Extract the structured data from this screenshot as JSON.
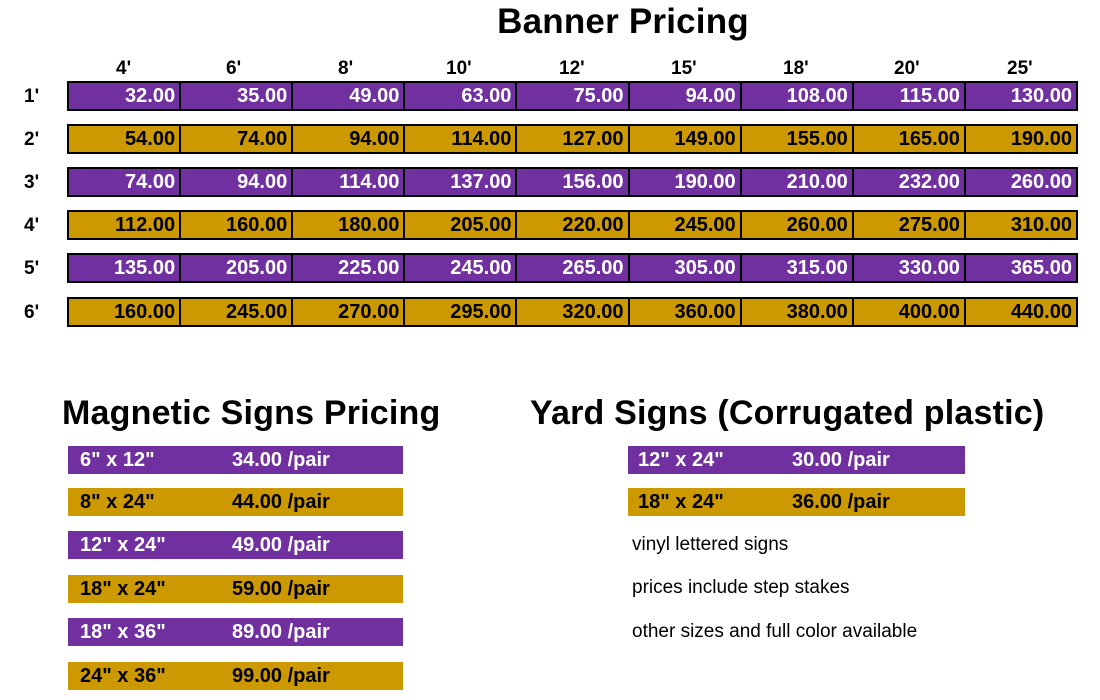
{
  "banner": {
    "title": "Banner Pricing",
    "columns": [
      "4'",
      "6'",
      "8'",
      "10'",
      "12'",
      "15'",
      "18'",
      "20'",
      "25'"
    ],
    "rows": [
      {
        "label": "1'",
        "color": "#7030a0",
        "prices": [
          "32.00",
          "35.00",
          "49.00",
          "63.00",
          "75.00",
          "94.00",
          "108.00",
          "115.00",
          "130.00"
        ]
      },
      {
        "label": "2'",
        "color": "#cc9900",
        "prices": [
          "54.00",
          "74.00",
          "94.00",
          "114.00",
          "127.00",
          "149.00",
          "155.00",
          "165.00",
          "190.00"
        ]
      },
      {
        "label": "3'",
        "color": "#7030a0",
        "prices": [
          "74.00",
          "94.00",
          "114.00",
          "137.00",
          "156.00",
          "190.00",
          "210.00",
          "232.00",
          "260.00"
        ]
      },
      {
        "label": "4'",
        "color": "#cc9900",
        "prices": [
          "112.00",
          "160.00",
          "180.00",
          "205.00",
          "220.00",
          "245.00",
          "260.00",
          "275.00",
          "310.00"
        ]
      },
      {
        "label": "5'",
        "color": "#7030a0",
        "prices": [
          "135.00",
          "205.00",
          "225.00",
          "245.00",
          "265.00",
          "305.00",
          "315.00",
          "330.00",
          "365.00"
        ]
      },
      {
        "label": "6'",
        "color": "#cc9900",
        "prices": [
          "160.00",
          "245.00",
          "270.00",
          "295.00",
          "320.00",
          "360.00",
          "380.00",
          "400.00",
          "440.00"
        ]
      }
    ]
  },
  "magnetic": {
    "title": "Magnetic Signs Pricing",
    "items": [
      {
        "size": "6\" x 12\"",
        "price": "34.00 /pair",
        "color": "#7030a0"
      },
      {
        "size": "8\" x 24\"",
        "price": "44.00 /pair",
        "color": "#cc9900"
      },
      {
        "size": "12\" x 24\"",
        "price": "49.00 /pair",
        "color": "#7030a0"
      },
      {
        "size": "18\" x 24\"",
        "price": "59.00 /pair",
        "color": "#cc9900"
      },
      {
        "size": "18\" x 36\"",
        "price": "89.00 /pair",
        "color": "#7030a0"
      },
      {
        "size": "24\" x 36\"",
        "price": "99.00 /pair",
        "color": "#cc9900"
      }
    ]
  },
  "yard": {
    "title": "Yard Signs (Corrugated plastic)",
    "items": [
      {
        "size": "12\" x 24\"",
        "price": "30.00 /pair",
        "color": "#7030a0"
      },
      {
        "size": "18\" x 24\"",
        "price": "36.00 /pair",
        "color": "#cc9900"
      }
    ],
    "notes": [
      "vinyl lettered signs",
      "prices include step stakes",
      "other sizes and full color available"
    ]
  }
}
